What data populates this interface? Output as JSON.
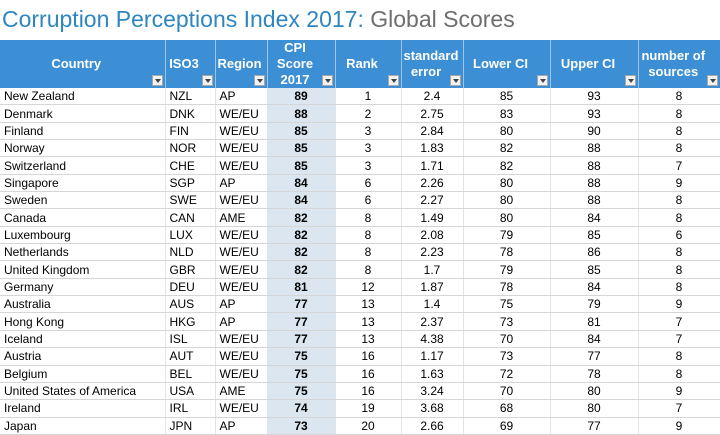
{
  "title": {
    "main": "Corruption Perceptions Index 2017:",
    "sub": "Global Scores"
  },
  "colors": {
    "header_bg": "#3c8fd4",
    "title_blue": "#2e86c1",
    "cpi_column_bg": "#dbe6f1"
  },
  "columns": [
    {
      "key": "country",
      "label": "Country"
    },
    {
      "key": "iso3",
      "label": "ISO3"
    },
    {
      "key": "region",
      "label": "Region"
    },
    {
      "key": "cpi",
      "label": "CPI Score\n2017"
    },
    {
      "key": "rank",
      "label": "Rank"
    },
    {
      "key": "se",
      "label": "standard\nerror"
    },
    {
      "key": "lower",
      "label": "Lower CI"
    },
    {
      "key": "upper",
      "label": "Upper CI"
    },
    {
      "key": "sources",
      "label": "number of\nsources"
    }
  ],
  "filter_icon": "dropdown-arrow-icon",
  "rows": [
    [
      "New Zealand",
      "NZL",
      "AP",
      "89",
      "1",
      "2.4",
      "85",
      "93",
      "8"
    ],
    [
      "Denmark",
      "DNK",
      "WE/EU",
      "88",
      "2",
      "2.75",
      "83",
      "93",
      "8"
    ],
    [
      "Finland",
      "FIN",
      "WE/EU",
      "85",
      "3",
      "2.84",
      "80",
      "90",
      "8"
    ],
    [
      "Norway",
      "NOR",
      "WE/EU",
      "85",
      "3",
      "1.83",
      "82",
      "88",
      "8"
    ],
    [
      "Switzerland",
      "CHE",
      "WE/EU",
      "85",
      "3",
      "1.71",
      "82",
      "88",
      "7"
    ],
    [
      "Singapore",
      "SGP",
      "AP",
      "84",
      "6",
      "2.26",
      "80",
      "88",
      "9"
    ],
    [
      "Sweden",
      "SWE",
      "WE/EU",
      "84",
      "6",
      "2.27",
      "80",
      "88",
      "8"
    ],
    [
      "Canada",
      "CAN",
      "AME",
      "82",
      "8",
      "1.49",
      "80",
      "84",
      "8"
    ],
    [
      "Luxembourg",
      "LUX",
      "WE/EU",
      "82",
      "8",
      "2.08",
      "79",
      "85",
      "6"
    ],
    [
      "Netherlands",
      "NLD",
      "WE/EU",
      "82",
      "8",
      "2.23",
      "78",
      "86",
      "8"
    ],
    [
      "United Kingdom",
      "GBR",
      "WE/EU",
      "82",
      "8",
      "1.7",
      "79",
      "85",
      "8"
    ],
    [
      "Germany",
      "DEU",
      "WE/EU",
      "81",
      "12",
      "1.87",
      "78",
      "84",
      "8"
    ],
    [
      "Australia",
      "AUS",
      "AP",
      "77",
      "13",
      "1.4",
      "75",
      "79",
      "9"
    ],
    [
      "Hong Kong",
      "HKG",
      "AP",
      "77",
      "13",
      "2.37",
      "73",
      "81",
      "7"
    ],
    [
      "Iceland",
      "ISL",
      "WE/EU",
      "77",
      "13",
      "4.38",
      "70",
      "84",
      "7"
    ],
    [
      "Austria",
      "AUT",
      "WE/EU",
      "75",
      "16",
      "1.17",
      "73",
      "77",
      "8"
    ],
    [
      "Belgium",
      "BEL",
      "WE/EU",
      "75",
      "16",
      "1.63",
      "72",
      "78",
      "8"
    ],
    [
      "United States of America",
      "USA",
      "AME",
      "75",
      "16",
      "3.24",
      "70",
      "80",
      "9"
    ],
    [
      "Ireland",
      "IRL",
      "WE/EU",
      "74",
      "19",
      "3.68",
      "68",
      "80",
      "7"
    ],
    [
      "Japan",
      "JPN",
      "AP",
      "73",
      "20",
      "2.66",
      "69",
      "77",
      "9"
    ]
  ]
}
